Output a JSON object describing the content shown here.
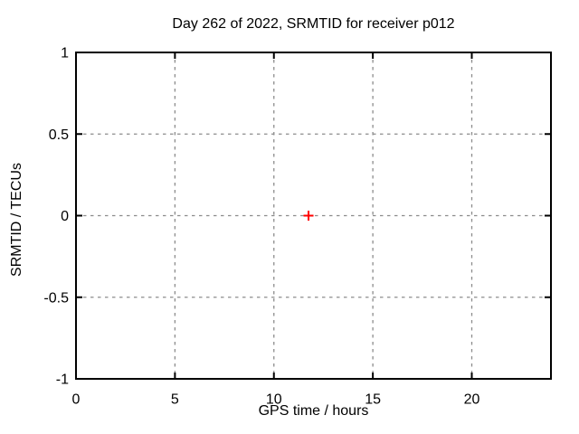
{
  "figure": {
    "title": "Day 262 of 2022, SRMTID for receiver p012",
    "xlabel": "GPS time / hours",
    "ylabel": "SRMTID / TECUs"
  },
  "chart_data": {
    "type": "scatter",
    "title": "Day 262 of 2022, SRMTID for receiver p012",
    "xlabel": "GPS time / hours",
    "ylabel": "SRMTID / TECUs",
    "xlim": [
      0,
      24
    ],
    "ylim": [
      -1,
      1
    ],
    "xticks": [
      0,
      5,
      10,
      15,
      20
    ],
    "xtick_labels": [
      "0",
      "5",
      "10",
      "15",
      "20"
    ],
    "yticks": [
      -1,
      -0.5,
      0,
      0.5,
      1
    ],
    "ytick_labels": [
      "-1",
      "-0.5",
      "0",
      "0.5",
      "1"
    ],
    "grid": true,
    "grid_style": "dotted",
    "legend": false,
    "series": [
      {
        "name": "SRMTID",
        "marker": "plus",
        "color": "#ff0000",
        "points": [
          {
            "x": 11.75,
            "y": 0.0
          }
        ]
      }
    ],
    "colors": {
      "background": "#ffffff",
      "border": "#000000",
      "grid": "#8c8c8c",
      "text": "#000000",
      "marker": "#ff0000"
    }
  }
}
